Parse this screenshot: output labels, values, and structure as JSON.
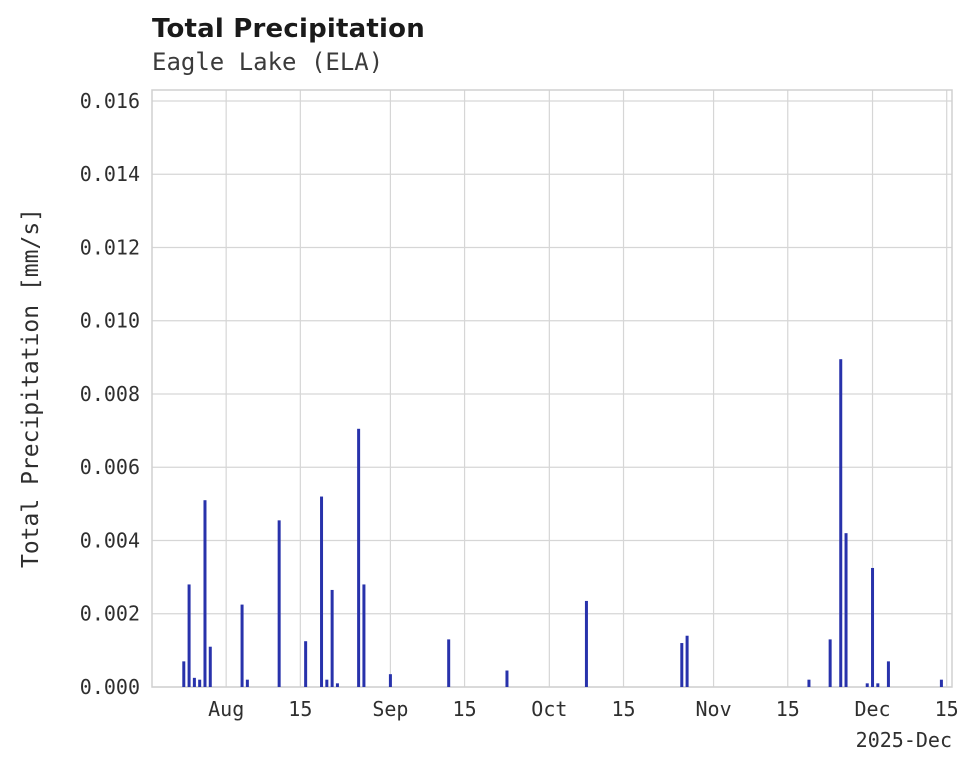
{
  "header": {
    "title": "Total Precipitation",
    "subtitle": "Eagle Lake (ELA)"
  },
  "chart_data": {
    "type": "bar",
    "title": "Total Precipitation",
    "subtitle": "Eagle Lake (ELA)",
    "xlabel": "",
    "ylabel": "Total Precipitation [mm/s]",
    "ylim": [
      0,
      0.016
    ],
    "y_display_max": 0.0163,
    "grid": true,
    "legend": "none",
    "bar_color": "#2832ab",
    "grid_color": "#d6d6d6",
    "x_domain": [
      "2025-07-18",
      "2025-12-16"
    ],
    "x_corner_label": "2025-Dec",
    "yticks": [
      {
        "value": 0.0,
        "label": "0.000"
      },
      {
        "value": 0.002,
        "label": "0.002"
      },
      {
        "value": 0.004,
        "label": "0.004"
      },
      {
        "value": 0.006,
        "label": "0.006"
      },
      {
        "value": 0.008,
        "label": "0.008"
      },
      {
        "value": 0.01,
        "label": "0.010"
      },
      {
        "value": 0.012,
        "label": "0.012"
      },
      {
        "value": 0.014,
        "label": "0.014"
      },
      {
        "value": 0.016,
        "label": "0.016"
      }
    ],
    "xticks": [
      {
        "date": "2025-08-01",
        "label": "Aug"
      },
      {
        "date": "2025-08-15",
        "label": "15"
      },
      {
        "date": "2025-09-01",
        "label": "Sep"
      },
      {
        "date": "2025-09-15",
        "label": "15"
      },
      {
        "date": "2025-10-01",
        "label": "Oct"
      },
      {
        "date": "2025-10-15",
        "label": "15"
      },
      {
        "date": "2025-11-01",
        "label": "Nov"
      },
      {
        "date": "2025-11-15",
        "label": "15"
      },
      {
        "date": "2025-12-01",
        "label": "Dec"
      },
      {
        "date": "2025-12-15",
        "label": "15"
      }
    ],
    "points": [
      {
        "date": "2025-07-24",
        "value": 0.0007
      },
      {
        "date": "2025-07-25",
        "value": 0.0028
      },
      {
        "date": "2025-07-26",
        "value": 0.00025
      },
      {
        "date": "2025-07-27",
        "value": 0.0002
      },
      {
        "date": "2025-07-28",
        "value": 0.0051
      },
      {
        "date": "2025-07-29",
        "value": 0.0011
      },
      {
        "date": "2025-08-04",
        "value": 0.00225
      },
      {
        "date": "2025-08-05",
        "value": 0.0002
      },
      {
        "date": "2025-08-11",
        "value": 0.00455
      },
      {
        "date": "2025-08-16",
        "value": 0.00125
      },
      {
        "date": "2025-08-19",
        "value": 0.0052
      },
      {
        "date": "2025-08-20",
        "value": 0.0002
      },
      {
        "date": "2025-08-21",
        "value": 0.00265
      },
      {
        "date": "2025-08-22",
        "value": 0.0001
      },
      {
        "date": "2025-08-26",
        "value": 0.00705
      },
      {
        "date": "2025-08-27",
        "value": 0.0028
      },
      {
        "date": "2025-09-01",
        "value": 0.00035
      },
      {
        "date": "2025-09-12",
        "value": 0.0013
      },
      {
        "date": "2025-09-23",
        "value": 0.00045
      },
      {
        "date": "2025-10-08",
        "value": 0.00235
      },
      {
        "date": "2025-10-26",
        "value": 0.0012
      },
      {
        "date": "2025-10-27",
        "value": 0.0014
      },
      {
        "date": "2025-11-19",
        "value": 0.0002
      },
      {
        "date": "2025-11-23",
        "value": 0.0013
      },
      {
        "date": "2025-11-25",
        "value": 0.00895
      },
      {
        "date": "2025-11-26",
        "value": 0.0042
      },
      {
        "date": "2025-11-30",
        "value": 0.0001
      },
      {
        "date": "2025-12-01",
        "value": 0.00325
      },
      {
        "date": "2025-12-02",
        "value": 0.0001
      },
      {
        "date": "2025-12-04",
        "value": 0.0007
      },
      {
        "date": "2025-12-14",
        "value": 0.0002
      }
    ]
  }
}
